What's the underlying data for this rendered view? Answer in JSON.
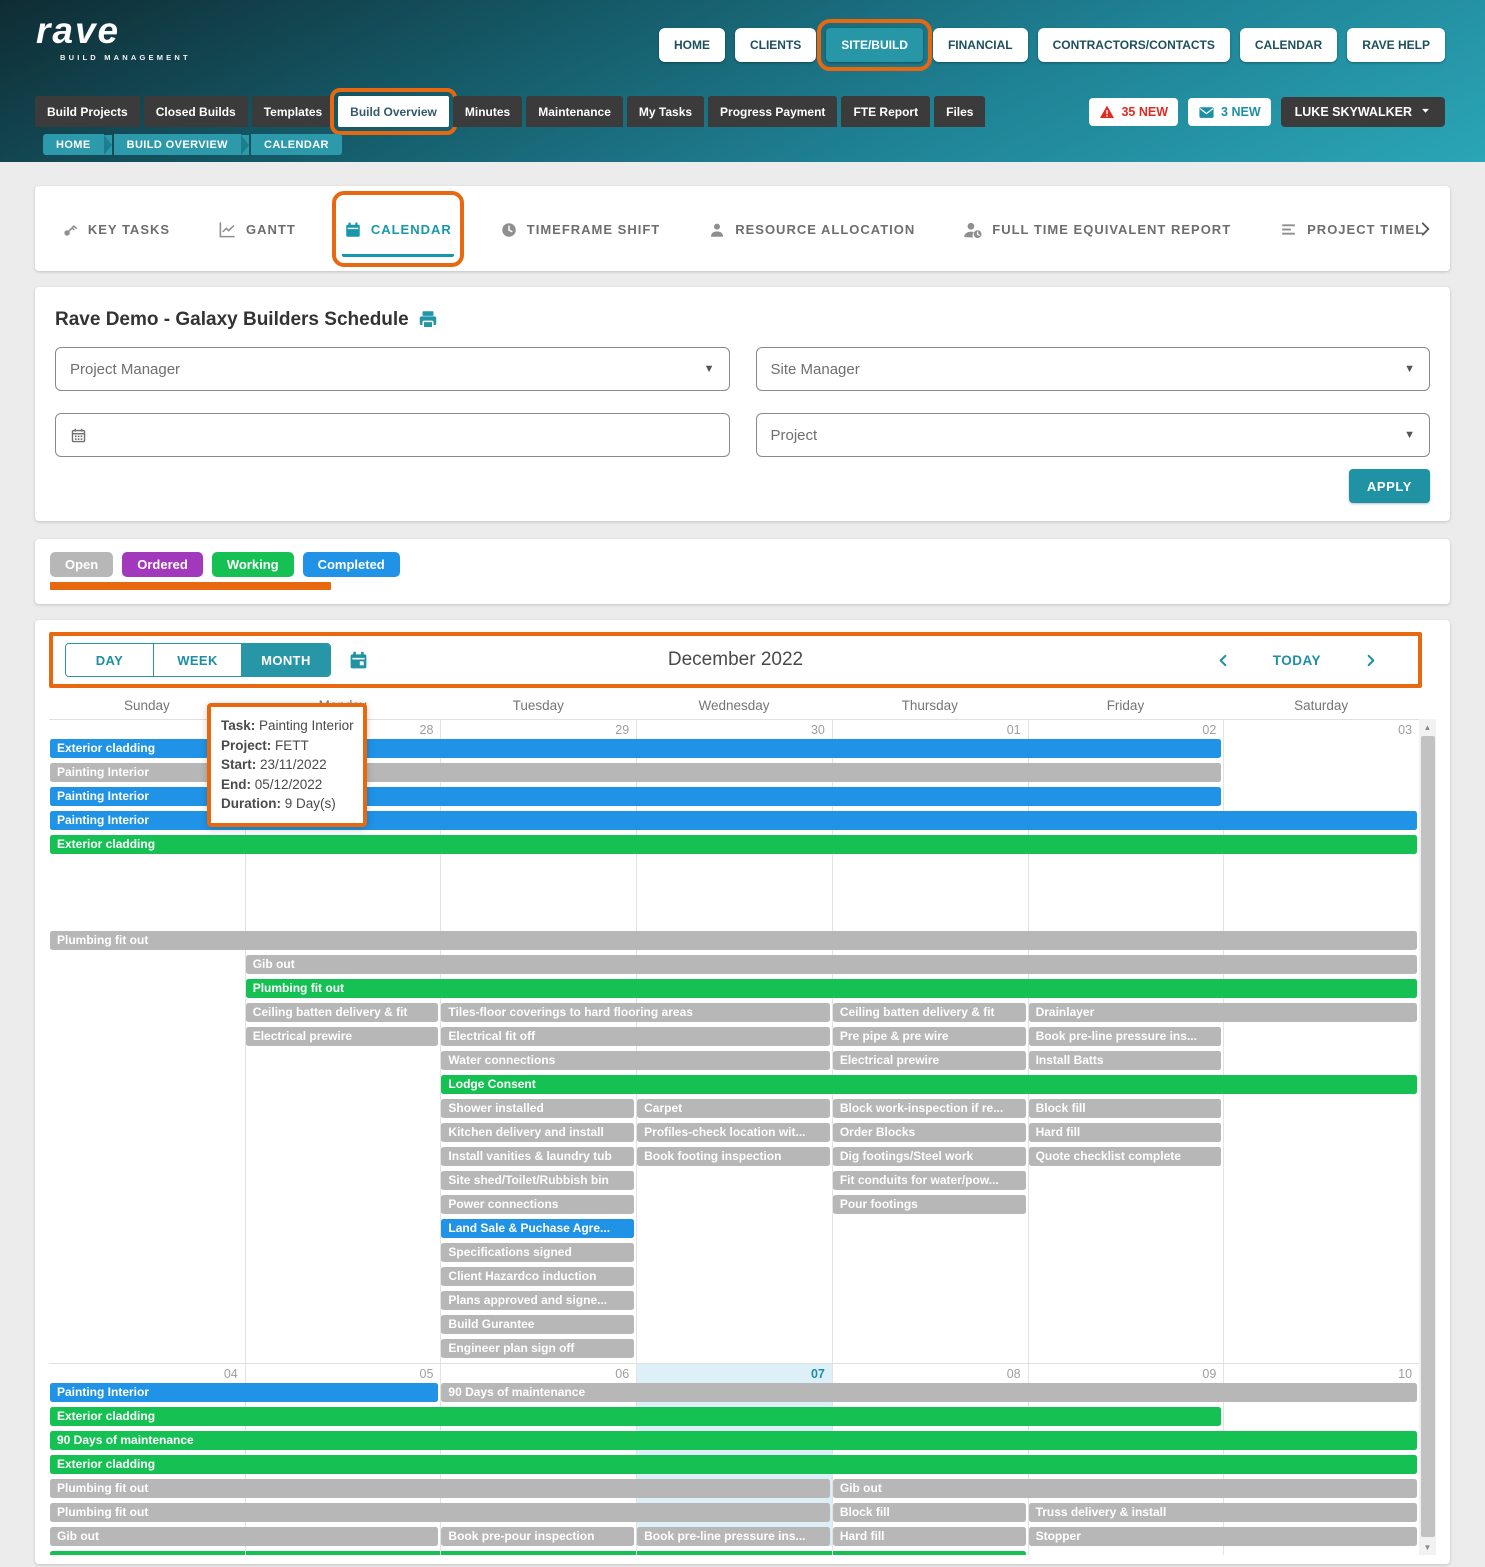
{
  "annotation_color": "#e8680f",
  "statuses": {
    "open": "#b7b7b7",
    "ordered": "#a238bb",
    "working": "#16c153",
    "completed": "#2093e7"
  },
  "header": {
    "logo": {
      "brand": "rave",
      "tagline": "BUILD MANAGEMENT"
    },
    "main_nav": [
      {
        "label": "HOME"
      },
      {
        "label": "CLIENTS"
      },
      {
        "label": "SITE/BUILD",
        "active": true,
        "annotated": true
      },
      {
        "label": "FINANCIAL"
      },
      {
        "label": "CONTRACTORS/CONTACTS"
      },
      {
        "label": "CALENDAR"
      },
      {
        "label": "RAVE HELP"
      }
    ],
    "sub_nav": [
      {
        "label": "Build Projects"
      },
      {
        "label": "Closed Builds"
      },
      {
        "label": "Templates"
      },
      {
        "label": "Build Overview",
        "active": true,
        "annotated": true
      },
      {
        "label": "Minutes"
      },
      {
        "label": "Maintenance"
      },
      {
        "label": "My Tasks"
      },
      {
        "label": "Progress Payment"
      },
      {
        "label": "FTE Report"
      },
      {
        "label": "Files"
      }
    ],
    "alerts": {
      "warning_label": "35 NEW",
      "message_label": "3 NEW"
    },
    "user_label": "LUKE SKYWALKER",
    "breadcrumb": [
      "HOME",
      "BUILD OVERVIEW",
      "CALENDAR"
    ]
  },
  "view_tabs": [
    {
      "label": "KEY TASKS",
      "icon": "key-icon"
    },
    {
      "label": "GANTT",
      "icon": "gantt-icon"
    },
    {
      "label": "CALENDAR",
      "icon": "calendar-icon",
      "active": true,
      "annotated": true
    },
    {
      "label": "TIMEFRAME SHIFT",
      "icon": "clock-icon"
    },
    {
      "label": "RESOURCE ALLOCATION",
      "icon": "person-icon"
    },
    {
      "label": "FULL TIME EQUIVALENT REPORT",
      "icon": "person-clock-icon"
    },
    {
      "label": "PROJECT TIMEL",
      "icon": "list-icon"
    }
  ],
  "schedule": {
    "title": "Rave Demo - Galaxy Builders Schedule",
    "filters": {
      "project_manager": "Project Manager",
      "site_manager": "Site Manager",
      "date_placeholder": "",
      "project": "Project",
      "apply_label": "APPLY"
    }
  },
  "legend": [
    {
      "label": "Open",
      "status": "open"
    },
    {
      "label": "Ordered",
      "status": "ordered"
    },
    {
      "label": "Working",
      "status": "working"
    },
    {
      "label": "Completed",
      "status": "completed"
    }
  ],
  "calendar": {
    "toolbar": {
      "views": [
        "DAY",
        "WEEK",
        "MONTH"
      ],
      "active_view": "MONTH",
      "title": "December 2022",
      "today_label": "TODAY"
    },
    "day_headers": [
      "Sunday",
      "Monday",
      "Tuesday",
      "Wednesday",
      "Thursday",
      "Friday",
      "Saturday"
    ],
    "weeks": [
      {
        "dates": [
          "",
          "28",
          "29",
          "30",
          "01",
          "02",
          "03"
        ],
        "today_index": null,
        "rows": [
          [
            {
              "label": "Exterior cladding",
              "status": "completed",
              "col": 0,
              "span": 6
            }
          ],
          [
            {
              "label": "Painting Interior",
              "status": "open",
              "col": 0,
              "span": 6
            }
          ],
          [
            {
              "label": "Painting Interior",
              "status": "completed",
              "col": 0,
              "span": 6
            }
          ],
          [
            {
              "label": "Painting Interior",
              "status": "completed",
              "col": 0,
              "span": 7
            }
          ],
          [
            {
              "label": "Exterior cladding",
              "status": "working",
              "col": 0,
              "span": 7
            }
          ],
          [],
          [],
          [],
          [
            {
              "label": "Plumbing fit out",
              "status": "open",
              "col": 0,
              "span": 7
            }
          ],
          [
            {
              "label": "Gib out",
              "status": "open",
              "col": 1,
              "span": 6
            }
          ],
          [
            {
              "label": "Plumbing fit out",
              "status": "working",
              "col": 1,
              "span": 6
            }
          ],
          [
            {
              "label": "Ceiling batten delivery & fit",
              "status": "open",
              "col": 1,
              "span": 1
            },
            {
              "label": "Tiles-floor coverings to hard flooring areas",
              "status": "open",
              "col": 2,
              "span": 2
            },
            {
              "label": "Ceiling batten delivery & fit",
              "status": "open",
              "col": 4,
              "span": 1
            },
            {
              "label": "Drainlayer",
              "status": "open",
              "col": 5,
              "span": 2
            }
          ],
          [
            {
              "label": "Electrical prewire",
              "status": "open",
              "col": 1,
              "span": 1
            },
            {
              "label": "Electrical fit off",
              "status": "open",
              "col": 2,
              "span": 2
            },
            {
              "label": "Pre pipe & pre wire",
              "status": "open",
              "col": 4,
              "span": 1
            },
            {
              "label": "Book pre-line pressure ins...",
              "status": "open",
              "col": 5,
              "span": 1
            }
          ],
          [
            {
              "label": "Water connections",
              "status": "open",
              "col": 2,
              "span": 2
            },
            {
              "label": "Electrical prewire",
              "status": "open",
              "col": 4,
              "span": 1
            },
            {
              "label": "Install Batts",
              "status": "open",
              "col": 5,
              "span": 1
            }
          ],
          [
            {
              "label": "Lodge Consent",
              "status": "working",
              "col": 2,
              "span": 5
            }
          ],
          [
            {
              "label": "Shower installed",
              "status": "open",
              "col": 2,
              "span": 1
            },
            {
              "label": "Carpet",
              "status": "open",
              "col": 3,
              "span": 1
            },
            {
              "label": "Block work-inspection if re...",
              "status": "open",
              "col": 4,
              "span": 1
            },
            {
              "label": "Block fill",
              "status": "open",
              "col": 5,
              "span": 1
            }
          ],
          [
            {
              "label": "Kitchen delivery and install",
              "status": "open",
              "col": 2,
              "span": 1
            },
            {
              "label": "Profiles-check location wit...",
              "status": "open",
              "col": 3,
              "span": 1
            },
            {
              "label": "Order Blocks",
              "status": "open",
              "col": 4,
              "span": 1
            },
            {
              "label": "Hard fill",
              "status": "open",
              "col": 5,
              "span": 1
            }
          ],
          [
            {
              "label": "Install vanities & laundry tub",
              "status": "open",
              "col": 2,
              "span": 1
            },
            {
              "label": "Book footing inspection",
              "status": "open",
              "col": 3,
              "span": 1
            },
            {
              "label": "Dig footings/Steel work",
              "status": "open",
              "col": 4,
              "span": 1
            },
            {
              "label": "Quote checklist complete",
              "status": "open",
              "col": 5,
              "span": 1
            }
          ],
          [
            {
              "label": "Site shed/Toilet/Rubbish bin",
              "status": "open",
              "col": 2,
              "span": 1
            },
            {
              "label": "Fit conduits for water/pow...",
              "status": "open",
              "col": 4,
              "span": 1
            }
          ],
          [
            {
              "label": "Power connections",
              "status": "open",
              "col": 2,
              "span": 1
            },
            {
              "label": "Pour footings",
              "status": "open",
              "col": 4,
              "span": 1
            }
          ],
          [
            {
              "label": "Land Sale & Puchase Agre...",
              "status": "completed",
              "col": 2,
              "span": 1
            }
          ],
          [
            {
              "label": "Specifications signed",
              "status": "open",
              "col": 2,
              "span": 1
            }
          ],
          [
            {
              "label": "Client Hazardco induction",
              "status": "open",
              "col": 2,
              "span": 1
            }
          ],
          [
            {
              "label": "Plans approved and signe...",
              "status": "open",
              "col": 2,
              "span": 1
            }
          ],
          [
            {
              "label": "Build Gurantee",
              "status": "open",
              "col": 2,
              "span": 1
            }
          ],
          [
            {
              "label": "Engineer plan sign off",
              "status": "open",
              "col": 2,
              "span": 1
            }
          ]
        ]
      },
      {
        "dates": [
          "04",
          "05",
          "06",
          "07",
          "08",
          "09",
          "10"
        ],
        "today_index": 3,
        "rows": [
          [
            {
              "label": "Painting Interior",
              "status": "completed",
              "col": 0,
              "span": 2
            },
            {
              "label": "90 Days of maintenance",
              "status": "open",
              "col": 2,
              "span": 5
            }
          ],
          [
            {
              "label": "Exterior cladding",
              "status": "working",
              "col": 0,
              "span": 6
            }
          ],
          [
            {
              "label": "90 Days of maintenance",
              "status": "working",
              "col": 0,
              "span": 7
            }
          ],
          [
            {
              "label": "Exterior cladding",
              "status": "working",
              "col": 0,
              "span": 7
            }
          ],
          [
            {
              "label": "Plumbing fit out",
              "status": "open",
              "col": 0,
              "span": 4
            },
            {
              "label": "Gib out",
              "status": "open",
              "col": 4,
              "span": 3
            }
          ],
          [
            {
              "label": "Plumbing fit out",
              "status": "open",
              "col": 0,
              "span": 4
            },
            {
              "label": "Block fill",
              "status": "open",
              "col": 4,
              "span": 1
            },
            {
              "label": "Truss delivery & install",
              "status": "open",
              "col": 5,
              "span": 2
            }
          ],
          [
            {
              "label": "Gib out",
              "status": "open",
              "col": 0,
              "span": 2
            },
            {
              "label": "Book pre-pour inspection",
              "status": "open",
              "col": 2,
              "span": 1
            },
            {
              "label": "Book pre-line pressure ins...",
              "status": "open",
              "col": 3,
              "span": 1
            },
            {
              "label": "Hard fill",
              "status": "open",
              "col": 4,
              "span": 1
            },
            {
              "label": "Stopper",
              "status": "open",
              "col": 5,
              "span": 2
            }
          ]
        ],
        "cutoff": {
          "status": "working",
          "col": 0,
          "span": 5
        }
      }
    ]
  },
  "tooltip": {
    "rows": [
      {
        "label": "Task:",
        "value": "Painting Interior"
      },
      {
        "label": "Project:",
        "value": "FETT"
      },
      {
        "label": "Start:",
        "value": "23/11/2022"
      },
      {
        "label": "End:",
        "value": "05/12/2022"
      },
      {
        "label": "Duration:",
        "value": "9 Day(s)"
      }
    ]
  }
}
